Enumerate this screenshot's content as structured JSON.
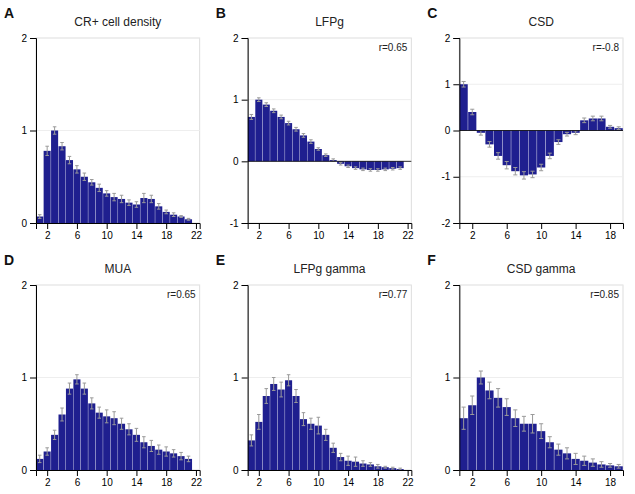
{
  "chart_data": [
    {
      "type": "bar",
      "title": "CR+ cell density",
      "annotations": [
        "A"
      ],
      "color": "#1f1f8f",
      "x": [
        1,
        2,
        3,
        4,
        5,
        6,
        7,
        8,
        9,
        10,
        11,
        12,
        13,
        14,
        15,
        16,
        17,
        18,
        19,
        20,
        21
      ],
      "values": [
        0.07,
        0.78,
        1.0,
        0.83,
        0.68,
        0.58,
        0.5,
        0.44,
        0.38,
        0.32,
        0.28,
        0.26,
        0.22,
        0.2,
        0.27,
        0.26,
        0.18,
        0.12,
        0.09,
        0.07,
        0.04
      ],
      "errors": [
        0.02,
        0.05,
        0.04,
        0.04,
        0.04,
        0.04,
        0.04,
        0.03,
        0.04,
        0.03,
        0.04,
        0.04,
        0.03,
        0.03,
        0.05,
        0.04,
        0.03,
        0.02,
        0.02,
        0.01,
        0.01
      ],
      "xlim": [
        0.5,
        22.5
      ],
      "xticks": [
        2,
        6,
        10,
        14,
        18,
        22
      ],
      "ylim": [
        0,
        2
      ],
      "yticks": [
        0,
        1,
        2
      ]
    },
    {
      "type": "bar",
      "title": "LFPg",
      "annotations": [
        "B",
        "r=0.65"
      ],
      "color": "#1f1f8f",
      "x": [
        1,
        2,
        3,
        4,
        5,
        6,
        7,
        8,
        9,
        10,
        11,
        12,
        13,
        14,
        15,
        16,
        17,
        18,
        19,
        20,
        21
      ],
      "values": [
        0.72,
        1.0,
        0.92,
        0.82,
        0.72,
        0.62,
        0.52,
        0.42,
        0.32,
        0.2,
        0.1,
        0.02,
        -0.04,
        -0.08,
        -0.11,
        -0.13,
        -0.14,
        -0.14,
        -0.13,
        -0.12,
        -0.11
      ],
      "errors": [
        0.04,
        0.03,
        0.03,
        0.03,
        0.03,
        0.03,
        0.03,
        0.03,
        0.03,
        0.02,
        0.02,
        0.02,
        0.02,
        0.02,
        0.02,
        0.02,
        0.02,
        0.02,
        0.02,
        0.02,
        0.02
      ],
      "xlim": [
        0.5,
        22.5
      ],
      "xticks": [
        2,
        6,
        10,
        14,
        18,
        22
      ],
      "ylim": [
        -1,
        2
      ],
      "yticks": [
        -1,
        0,
        1,
        2
      ]
    },
    {
      "type": "bar",
      "title": "CSD",
      "annotations": [
        "C",
        "r=-0.8"
      ],
      "color": "#1f1f8f",
      "x": [
        1,
        2,
        3,
        4,
        5,
        6,
        7,
        8,
        9,
        10,
        11,
        12,
        13,
        14,
        15,
        16,
        17,
        18,
        19
      ],
      "values": [
        1.0,
        0.4,
        -0.05,
        -0.3,
        -0.55,
        -0.75,
        -0.88,
        -0.97,
        -0.95,
        -0.8,
        -0.55,
        -0.25,
        -0.08,
        -0.05,
        0.22,
        0.26,
        0.26,
        0.08,
        0.05
      ],
      "errors": [
        0.06,
        0.06,
        0.05,
        0.06,
        0.07,
        0.08,
        0.08,
        0.08,
        0.07,
        0.07,
        0.06,
        0.05,
        0.04,
        0.04,
        0.05,
        0.05,
        0.05,
        0.03,
        0.03
      ],
      "xlim": [
        0.5,
        19.5
      ],
      "xticks": [
        2,
        6,
        10,
        14,
        18
      ],
      "ylim": [
        -2,
        2
      ],
      "yticks": [
        -2,
        -1,
        0,
        1,
        2
      ]
    },
    {
      "type": "bar",
      "title": "MUA",
      "annotations": [
        "D",
        "r=0.65"
      ],
      "color": "#1f1f8f",
      "x": [
        1,
        2,
        3,
        4,
        5,
        6,
        7,
        8,
        9,
        10,
        11,
        12,
        13,
        14,
        15,
        16,
        17,
        18,
        19,
        20,
        21
      ],
      "values": [
        0.12,
        0.2,
        0.38,
        0.6,
        0.88,
        0.98,
        0.88,
        0.72,
        0.62,
        0.58,
        0.56,
        0.5,
        0.44,
        0.38,
        0.3,
        0.26,
        0.22,
        0.2,
        0.18,
        0.15,
        0.12
      ],
      "errors": [
        0.04,
        0.04,
        0.05,
        0.07,
        0.06,
        0.05,
        0.06,
        0.06,
        0.06,
        0.07,
        0.07,
        0.06,
        0.06,
        0.07,
        0.06,
        0.06,
        0.05,
        0.05,
        0.04,
        0.04,
        0.03
      ],
      "xlim": [
        0.5,
        22.5
      ],
      "xticks": [
        2,
        6,
        10,
        14,
        18,
        22
      ],
      "ylim": [
        0,
        2
      ],
      "yticks": [
        0,
        1,
        2
      ]
    },
    {
      "type": "bar",
      "title": "LFPg gamma",
      "annotations": [
        "E",
        "r=0.77"
      ],
      "color": "#1f1f8f",
      "x": [
        1,
        2,
        3,
        4,
        5,
        6,
        7,
        8,
        9,
        10,
        11,
        12,
        13,
        14,
        15,
        16,
        17,
        18,
        19,
        20,
        21
      ],
      "values": [
        0.32,
        0.52,
        0.8,
        0.93,
        0.87,
        0.97,
        0.8,
        0.55,
        0.5,
        0.48,
        0.38,
        0.24,
        0.14,
        0.1,
        0.09,
        0.07,
        0.06,
        0.04,
        0.03,
        0.02,
        0.01
      ],
      "errors": [
        0.06,
        0.08,
        0.08,
        0.07,
        0.08,
        0.06,
        0.07,
        0.07,
        0.06,
        0.09,
        0.06,
        0.05,
        0.04,
        0.05,
        0.05,
        0.03,
        0.02,
        0.02,
        0.01,
        0.01,
        0.01
      ],
      "xlim": [
        0.5,
        22.5
      ],
      "xticks": [
        2,
        6,
        10,
        14,
        18,
        22
      ],
      "ylim": [
        0,
        2
      ],
      "yticks": [
        0,
        1,
        2
      ]
    },
    {
      "type": "bar",
      "title": "CSD gamma",
      "annotations": [
        "F",
        "r=0.85"
      ],
      "color": "#1f1f8f",
      "x": [
        1,
        2,
        3,
        4,
        5,
        6,
        7,
        8,
        9,
        10,
        11,
        12,
        13,
        14,
        15,
        16,
        17,
        18,
        19
      ],
      "values": [
        0.56,
        0.7,
        1.0,
        0.86,
        0.78,
        0.68,
        0.56,
        0.5,
        0.5,
        0.42,
        0.3,
        0.22,
        0.18,
        0.12,
        0.1,
        0.08,
        0.06,
        0.05,
        0.04
      ],
      "errors": [
        0.12,
        0.1,
        0.07,
        0.09,
        0.1,
        0.09,
        0.09,
        0.08,
        0.1,
        0.08,
        0.06,
        0.06,
        0.06,
        0.06,
        0.05,
        0.04,
        0.03,
        0.02,
        0.02
      ],
      "xlim": [
        0.5,
        19.5
      ],
      "xticks": [
        2,
        6,
        10,
        14,
        18
      ],
      "ylim": [
        0,
        2
      ],
      "yticks": [
        0,
        1,
        2
      ]
    }
  ]
}
